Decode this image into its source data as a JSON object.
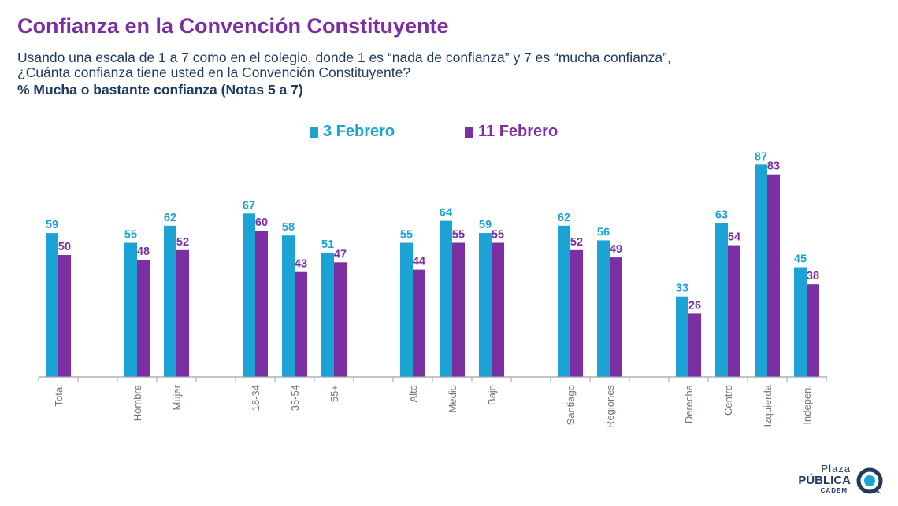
{
  "header": {
    "title": "Confianza en la Convención Constituyente",
    "subtitle_line1": "Usando una escala de 1 a 7 como en el colegio, donde 1 es “nada de confianza” y 7 es “mucha confianza”,",
    "subtitle_line2": "¿Cuánta confianza tiene usted en la Convención Constituyente?",
    "measure": "% Mucha o bastante confianza (Notas 5 a 7)"
  },
  "chart_data": {
    "type": "bar",
    "categories": [
      "Total",
      "Hombre",
      "Mujer",
      "18-34",
      "35-54",
      "55+",
      "Alto",
      "Medio",
      "Bajo",
      "Santiago",
      "Regiones",
      "Derecha",
      "Centro",
      "Izquierda",
      "Indepen."
    ],
    "groups": [
      [
        "Total"
      ],
      [
        "Hombre",
        "Mujer"
      ],
      [
        "18-34",
        "35-54",
        "55+"
      ],
      [
        "Alto",
        "Medio",
        "Bajo"
      ],
      [
        "Santiago",
        "Regiones"
      ],
      [
        "Derecha",
        "Centro",
        "Izquierda",
        "Indepen."
      ]
    ],
    "series": [
      {
        "name": "3 Febrero",
        "color": "#1ba3d6",
        "values": [
          59,
          55,
          62,
          67,
          58,
          51,
          55,
          64,
          59,
          62,
          56,
          33,
          63,
          87,
          45
        ]
      },
      {
        "name": "11 Febrero",
        "color": "#7b2fa3",
        "values": [
          50,
          48,
          52,
          60,
          43,
          47,
          44,
          55,
          55,
          52,
          49,
          26,
          54,
          83,
          38
        ]
      }
    ],
    "ylim": [
      0,
      100
    ],
    "grid": false,
    "legend_position": "top-center",
    "data_labels": true
  },
  "logo": {
    "line1": "Plaza",
    "line2": "PÚBLICA",
    "line3": "CADEM",
    "color": "#1f3a5f",
    "accent": "#1ba3d6"
  }
}
